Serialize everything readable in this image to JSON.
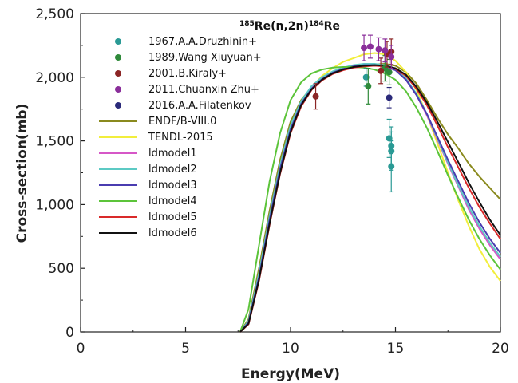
{
  "chart_data": {
    "type": "line",
    "title_parts": {
      "sup1": "185",
      "main1": "Re(n,2n)",
      "sup2": "184",
      "main2": "Re"
    },
    "xlabel": "Energy(MeV)",
    "ylabel": "Cross-section(mb)",
    "xlim": [
      0,
      20
    ],
    "ylim": [
      0,
      2500
    ],
    "x_ticks": [
      "0",
      "5",
      "10",
      "15",
      "20"
    ],
    "y_ticks": [
      "0",
      "500",
      "1,000",
      "1,500",
      "2,000",
      "2,500"
    ],
    "grid": false,
    "legend_position": "top-left",
    "series": [
      {
        "name": "ENDF/B-VIII.0",
        "color": "#8a8a1e",
        "x": [
          7.6,
          8,
          8.5,
          9,
          9.5,
          10,
          10.5,
          11,
          11.5,
          12,
          12.5,
          13,
          13.5,
          14,
          14.5,
          15,
          15.5,
          16,
          16.5,
          17,
          17.5,
          18,
          18.5,
          19,
          19.5,
          20
        ],
        "y": [
          0,
          100,
          500,
          950,
          1350,
          1650,
          1820,
          1920,
          1990,
          2030,
          2060,
          2080,
          2095,
          2100,
          2105,
          2090,
          2040,
          1950,
          1820,
          1680,
          1550,
          1440,
          1320,
          1220,
          1130,
          1040
        ]
      },
      {
        "name": "TENDL-2015",
        "color": "#f2ee3c",
        "x": [
          7.6,
          8,
          8.5,
          9,
          9.5,
          10,
          10.5,
          11,
          11.5,
          12,
          12.5,
          13,
          13.5,
          14,
          14.5,
          15,
          15.5,
          16,
          16.5,
          17,
          17.5,
          18,
          18.5,
          19,
          19.5,
          20
        ],
        "y": [
          0,
          70,
          420,
          850,
          1250,
          1580,
          1790,
          1920,
          2010,
          2070,
          2120,
          2150,
          2180,
          2190,
          2180,
          2130,
          2040,
          1900,
          1700,
          1480,
          1250,
          1030,
          830,
          650,
          510,
          400
        ]
      },
      {
        "name": "ldmodel1",
        "color": "#d657c7",
        "x": [
          7.6,
          8,
          8.5,
          9,
          9.5,
          10,
          10.5,
          11,
          11.5,
          12,
          12.5,
          13,
          13.5,
          14,
          14.5,
          15,
          15.5,
          16,
          16.5,
          17,
          17.5,
          18,
          18.5,
          19,
          19.5,
          20
        ],
        "y": [
          0,
          80,
          450,
          900,
          1300,
          1610,
          1800,
          1920,
          1990,
          2040,
          2070,
          2090,
          2100,
          2100,
          2090,
          2060,
          1980,
          1860,
          1700,
          1510,
          1320,
          1140,
          960,
          810,
          680,
          570
        ]
      },
      {
        "name": "ldmodel2",
        "color": "#5ccac4",
        "x": [
          7.6,
          8,
          8.5,
          9,
          9.5,
          10,
          10.5,
          11,
          11.5,
          12,
          12.5,
          13,
          13.5,
          14,
          14.5,
          15,
          15.5,
          16,
          16.5,
          17,
          17.5,
          18,
          18.5,
          19,
          19.5,
          20
        ],
        "y": [
          0,
          85,
          460,
          910,
          1310,
          1620,
          1810,
          1930,
          2000,
          2045,
          2075,
          2095,
          2105,
          2105,
          2095,
          2065,
          1990,
          1870,
          1710,
          1520,
          1330,
          1150,
          980,
          830,
          700,
          590
        ]
      },
      {
        "name": "ldmodel3",
        "color": "#4a3cb0",
        "x": [
          7.6,
          8,
          8.5,
          9,
          9.5,
          10,
          10.5,
          11,
          11.5,
          12,
          12.5,
          13,
          13.5,
          14,
          14.5,
          15,
          15.5,
          16,
          16.5,
          17,
          17.5,
          18,
          18.5,
          19,
          19.5,
          20
        ],
        "y": [
          0,
          75,
          430,
          880,
          1280,
          1590,
          1790,
          1910,
          1985,
          2035,
          2065,
          2085,
          2095,
          2095,
          2085,
          2055,
          1980,
          1860,
          1710,
          1530,
          1350,
          1180,
          1010,
          860,
          730,
          620
        ]
      },
      {
        "name": "ldmodel4",
        "color": "#5cc43a",
        "x": [
          7.6,
          8,
          8.5,
          9,
          9.5,
          10,
          10.5,
          11,
          11.5,
          12,
          12.5,
          13,
          13.5,
          14,
          14.5,
          15,
          15.5,
          16,
          16.5,
          17,
          17.5,
          18,
          18.5,
          19,
          19.5,
          20
        ],
        "y": [
          0,
          180,
          680,
          1180,
          1560,
          1820,
          1960,
          2030,
          2060,
          2075,
          2080,
          2080,
          2075,
          2060,
          2030,
          1980,
          1890,
          1760,
          1600,
          1420,
          1230,
          1050,
          880,
          730,
          600,
          490
        ]
      },
      {
        "name": "ldmodel5",
        "color": "#d92a2a",
        "x": [
          7.6,
          8,
          8.5,
          9,
          9.5,
          10,
          10.5,
          11,
          11.5,
          12,
          12.5,
          13,
          13.5,
          14,
          14.5,
          15,
          15.5,
          16,
          16.5,
          17,
          17.5,
          18,
          18.5,
          19,
          19.5,
          20
        ],
        "y": [
          0,
          60,
          400,
          840,
          1240,
          1560,
          1770,
          1900,
          1975,
          2025,
          2055,
          2075,
          2085,
          2090,
          2085,
          2065,
          2010,
          1910,
          1780,
          1620,
          1450,
          1290,
          1130,
          980,
          850,
          730
        ]
      },
      {
        "name": "ldmodel6",
        "color": "#111111",
        "x": [
          7.6,
          8,
          8.5,
          9,
          9.5,
          10,
          10.5,
          11,
          11.5,
          12,
          12.5,
          13,
          13.5,
          14,
          14.5,
          15,
          15.5,
          16,
          16.5,
          17,
          17.5,
          18,
          18.5,
          19,
          19.5,
          20
        ],
        "y": [
          0,
          65,
          410,
          850,
          1250,
          1570,
          1780,
          1905,
          1980,
          2030,
          2060,
          2080,
          2090,
          2095,
          2090,
          2070,
          2020,
          1925,
          1800,
          1650,
          1490,
          1330,
          1170,
          1020,
          880,
          760
        ]
      }
    ],
    "experimental": [
      {
        "name": "1967,A.A.Druzhinin+",
        "color": "#2a9a95",
        "points": [
          {
            "x": 13.6,
            "y": 2000,
            "err": 70
          },
          {
            "x": 14.7,
            "y": 1520,
            "err": 150
          },
          {
            "x": 14.8,
            "y": 1460,
            "err": 150
          },
          {
            "x": 14.8,
            "y": 1420,
            "err": 150
          },
          {
            "x": 14.8,
            "y": 1300,
            "err": 200
          }
        ]
      },
      {
        "name": "1989,Wang Xiuyuan+",
        "color": "#2f8a3a",
        "points": [
          {
            "x": 13.7,
            "y": 1930,
            "err": 140
          },
          {
            "x": 14.5,
            "y": 2070,
            "err": 100
          },
          {
            "x": 14.7,
            "y": 2040,
            "err": 100
          }
        ]
      },
      {
        "name": "2001,B.Kiraly+",
        "color": "#8b2525",
        "points": [
          {
            "x": 11.2,
            "y": 1850,
            "err": 100
          },
          {
            "x": 14.3,
            "y": 2050,
            "err": 100
          },
          {
            "x": 14.6,
            "y": 2180,
            "err": 100
          },
          {
            "x": 14.8,
            "y": 2200,
            "err": 100
          }
        ]
      },
      {
        "name": "2011,Chuanxin Zhu+",
        "color": "#8a2e9a",
        "points": [
          {
            "x": 13.5,
            "y": 2230,
            "err": 100
          },
          {
            "x": 13.8,
            "y": 2240,
            "err": 90
          },
          {
            "x": 14.2,
            "y": 2220,
            "err": 90
          },
          {
            "x": 14.5,
            "y": 2210,
            "err": 90
          },
          {
            "x": 14.8,
            "y": 2160,
            "err": 90
          }
        ]
      },
      {
        "name": "2016,A.A.Filatenkov",
        "color": "#2b2a7a",
        "points": [
          {
            "x": 14.7,
            "y": 1840,
            "err": 80
          }
        ]
      }
    ]
  }
}
